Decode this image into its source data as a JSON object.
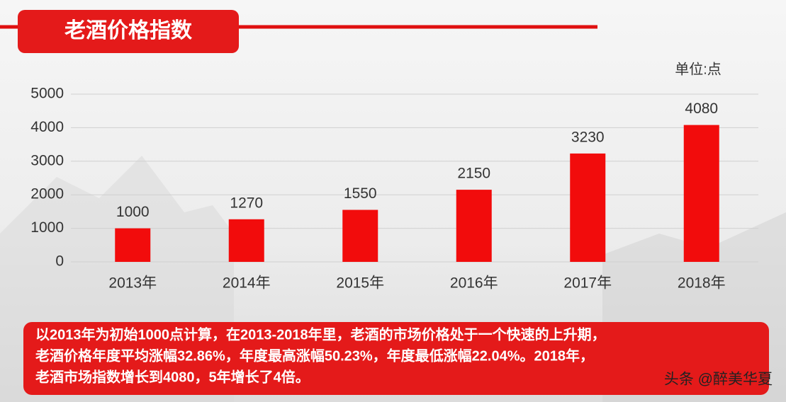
{
  "chart_data": {
    "type": "bar",
    "title": "老酒价格指数",
    "unit_label": "单位:点",
    "categories": [
      "2013年",
      "2014年",
      "2015年",
      "2016年",
      "2017年",
      "2018年"
    ],
    "values": [
      1000,
      1270,
      1550,
      2150,
      3230,
      4080
    ],
    "color": "#f20c0c",
    "ylim": [
      0,
      5000
    ],
    "yticks": [
      0,
      1000,
      2000,
      3000,
      4000,
      5000
    ],
    "grid": true,
    "note_lines": [
      "以2013年为初始1000点计算，在2013-2018年里，老酒的市场价格处于一个快速的上升期，",
      "老酒价格年度平均涨幅32.86%，年度最高涨幅50.23%，年度最低涨幅22.04%。2018年，",
      "老酒市场指数增长到4080，5年增长了4倍。"
    ],
    "watermark": "头条 @醉美华夏"
  }
}
